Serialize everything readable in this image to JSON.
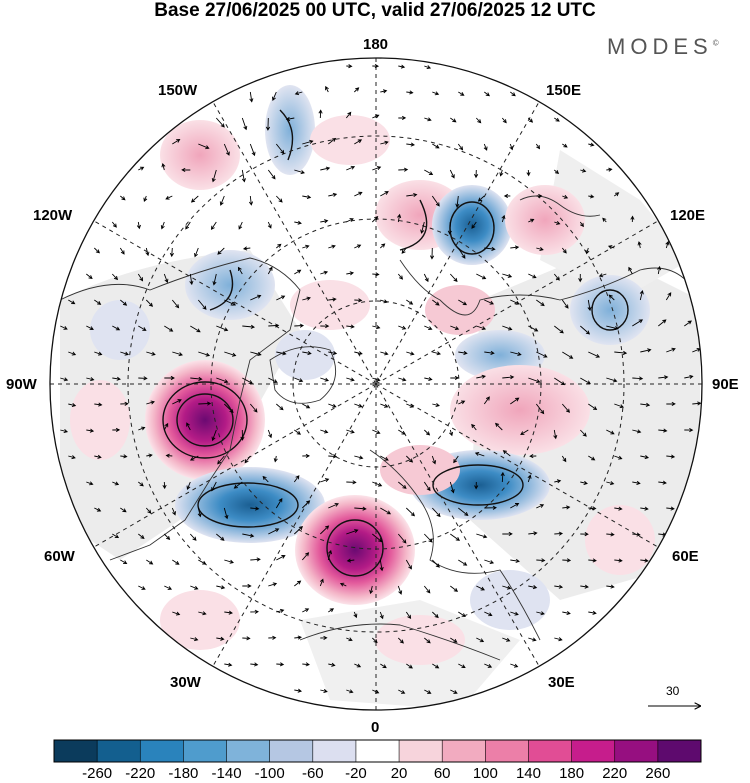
{
  "title": "Base 27/06/2025 00 UTC, valid 27/06/2025 12 UTC",
  "brand": "MODES",
  "brand_mark": "©",
  "map": {
    "projection": "north polar stereographic",
    "labels": {
      "top": "180",
      "bottom": "0",
      "left": "90W",
      "right": "90E",
      "upper_left": "150W",
      "upper_right": "150E",
      "upper_left_2": "120W",
      "upper_right_2": "120E",
      "lower_left": "60W",
      "lower_right": "60E",
      "lower_left_2": "30W",
      "lower_right_2": "30E"
    },
    "wind_reference": "30"
  },
  "colorbar": {
    "labels": [
      "-260",
      "-220",
      "-180",
      "-140",
      "-100",
      "-60",
      "-20",
      "20",
      "60",
      "100",
      "140",
      "180",
      "220",
      "260"
    ],
    "colors": [
      "#0b3b5c",
      "#135f8f",
      "#2a83bc",
      "#4f9ccd",
      "#7fb3da",
      "#b5c7e3",
      "#dcdff0",
      "#ffffff",
      "#f7d4dc",
      "#f2abc0",
      "#ec7fa8",
      "#e14d95",
      "#c61d8c",
      "#960f80",
      "#5e0a6e"
    ]
  }
}
